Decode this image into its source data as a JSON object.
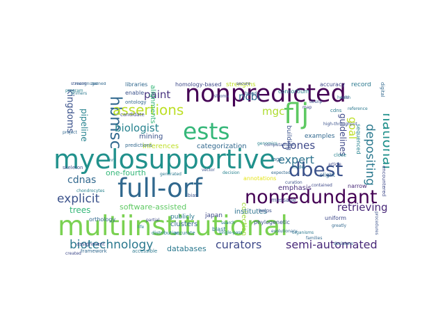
{
  "words": [
    {
      "text": "multiinstitutional",
      "color": "#7ad151"
    },
    {
      "text": "myelosupportive",
      "color": "#21918c"
    },
    {
      "text": "nonpredicted",
      "color": "#440154"
    },
    {
      "text": "full-orf",
      "color": "#31688e"
    },
    {
      "text": "flj",
      "color": "#5ec962"
    },
    {
      "text": "ests",
      "color": "#35b779"
    },
    {
      "text": "nonredundant",
      "color": "#440154"
    },
    {
      "text": "dbest",
      "color": "#3b528b"
    },
    {
      "text": "hbmsc",
      "color": "#31688e"
    },
    {
      "text": "assertions",
      "color": "#bddf26"
    },
    {
      "text": "national",
      "color": "#21918c"
    },
    {
      "text": "biotechnology",
      "color": "#2a788e"
    },
    {
      "text": "curators",
      "color": "#3e4989"
    },
    {
      "text": "semi-automated",
      "color": "#482878"
    },
    {
      "text": "explicit",
      "color": "#3b528b"
    },
    {
      "text": "expert",
      "color": "#2c728e"
    },
    {
      "text": "biologist",
      "color": "#26828e"
    },
    {
      "text": "paint",
      "color": "#46327e"
    },
    {
      "text": "cdnas",
      "color": "#31688e"
    },
    {
      "text": "depositing",
      "color": "#2a788e"
    },
    {
      "text": "kingdoms",
      "color": "#3b528b"
    },
    {
      "text": "ncbi",
      "color": "#31688e"
    },
    {
      "text": "mgc",
      "color": "#addc30"
    },
    {
      "text": "clones",
      "color": "#3e4989"
    },
    {
      "text": "pipeline",
      "color": "#26828e"
    },
    {
      "text": "goal",
      "color": "#bddf26"
    },
    {
      "text": "trees",
      "color": "#35b779"
    },
    {
      "text": "retrieving",
      "color": "#482878"
    },
    {
      "text": "software-assisted",
      "color": "#5ec962"
    },
    {
      "text": "databases",
      "color": "#2a788e"
    },
    {
      "text": "guidelines",
      "color": "#3e4989"
    },
    {
      "text": "one-fourth",
      "color": "#35b779"
    },
    {
      "text": "collection",
      "color": "#a0da39"
    },
    {
      "text": "categorization",
      "color": "#31688e"
    },
    {
      "text": "inferences",
      "color": "#bddf26"
    },
    {
      "text": "alignments",
      "color": "#35b779"
    },
    {
      "text": "mining",
      "color": "#3b528b"
    },
    {
      "text": "publicly",
      "color": "#2a788e"
    },
    {
      "text": "japan",
      "color": "#3e4989"
    },
    {
      "text": "emphasis",
      "color": "#472d7b"
    },
    {
      "text": "institutes",
      "color": "#2c728e"
    },
    {
      "text": "clusters",
      "color": "#31688e"
    },
    {
      "text": "building",
      "color": "#3b528b"
    },
    {
      "text": "annotations",
      "color": "#e5e419"
    },
    {
      "text": "homology-based",
      "color": "#3e4989"
    },
    {
      "text": "strengths",
      "color": "#bddf26"
    },
    {
      "text": "libraries",
      "color": "#31688e"
    },
    {
      "text": "consortium",
      "color": "#26828e"
    },
    {
      "text": "accuracy",
      "color": "#3e4989"
    },
    {
      "text": "record",
      "color": "#2a788e"
    },
    {
      "text": "examples",
      "color": "#31688e"
    },
    {
      "text": "phylogenetic",
      "color": "#3b528b"
    },
    {
      "text": "sequenced",
      "color": "#26828e"
    },
    {
      "text": "uniform",
      "color": "#3e4989"
    },
    {
      "text": "orthology",
      "color": "#31688e"
    },
    {
      "text": "blast",
      "color": "#2a788e"
    },
    {
      "text": "message",
      "color": "#3e4989"
    },
    {
      "text": "slight",
      "color": "#31688e"
    },
    {
      "text": "narrow",
      "color": "#482878"
    },
    {
      "text": "enable",
      "color": "#3b528b"
    },
    {
      "text": "ontology",
      "color": "#31688e"
    },
    {
      "text": "accurate",
      "color": "#2a788e"
    },
    {
      "text": "distribution",
      "color": "#26828e"
    },
    {
      "text": "candidate",
      "color": "#3e4989"
    },
    {
      "text": "predictions",
      "color": "#31688e"
    },
    {
      "text": "skeleton",
      "color": "#3b528b"
    },
    {
      "text": "assignment",
      "color": "#3e4989"
    },
    {
      "text": "framework",
      "color": "#31688e"
    },
    {
      "text": "accessible",
      "color": "#2a788e"
    },
    {
      "text": "bias",
      "color": "#3b528b"
    },
    {
      "text": "tags",
      "color": "#31688e"
    },
    {
      "text": "close",
      "color": "#26828e"
    },
    {
      "text": "cdns",
      "color": "#2a788e"
    },
    {
      "text": "digital",
      "color": "#31688e"
    },
    {
      "text": "encountered",
      "color": "#3e4989"
    },
    {
      "text": "helps",
      "color": "#3b528b"
    },
    {
      "text": "search",
      "color": "#2a788e"
    },
    {
      "text": "article",
      "color": "#3e4989"
    },
    {
      "text": "project",
      "color": "#31688e"
    },
    {
      "text": "genomics",
      "color": "#26828e"
    },
    {
      "text": "stroma",
      "color": "#3b528b"
    },
    {
      "text": "recognized",
      "color": "#31688e"
    },
    {
      "text": "chondrocytes",
      "color": "#26828e"
    },
    {
      "text": "contained",
      "color": "#3e4989"
    },
    {
      "text": "procedures",
      "color": "#3b528b"
    },
    {
      "text": "families",
      "color": "#31688e"
    },
    {
      "text": "organisms",
      "color": "#2a788e"
    },
    {
      "text": "computational",
      "color": "#3b528b"
    },
    {
      "text": "evolutionary",
      "color": "#31688e"
    },
    {
      "text": "single-pass",
      "color": "#26828e"
    },
    {
      "text": "partial",
      "color": "#3e4989"
    },
    {
      "text": "reference",
      "color": "#2a788e"
    },
    {
      "text": "high-throughput",
      "color": "#3b528b"
    },
    {
      "text": "greatly",
      "color": "#31688e"
    },
    {
      "text": "life",
      "color": "#26828e"
    },
    {
      "text": "created",
      "color": "#3e4989"
    },
    {
      "text": "primers",
      "color": "#2a788e"
    },
    {
      "text": "dbsnp",
      "color": "#3b528b"
    },
    {
      "text": "broad",
      "color": "#31688e"
    },
    {
      "text": "map",
      "color": "#3e4989"
    },
    {
      "text": "health",
      "color": "#2a788e"
    },
    {
      "text": "streaml",
      "color": "#3b528b"
    },
    {
      "text": "gained",
      "color": "#31688e"
    },
    {
      "text": "program",
      "color": "#26828e"
    },
    {
      "text": "rna",
      "color": "#3e4989"
    },
    {
      "text": "model",
      "color": "#2a788e"
    },
    {
      "text": "vector",
      "color": "#3b528b"
    },
    {
      "text": "expected",
      "color": "#31688e"
    },
    {
      "text": "decision",
      "color": "#26828e"
    },
    {
      "text": "secure",
      "color": "#3e4989"
    },
    {
      "text": "generated",
      "color": "#2a788e"
    },
    {
      "text": "curation",
      "color": "#3b528b"
    },
    {
      "text": "decisions",
      "color": "#31688e"
    },
    {
      "text": "mm",
      "color": "#26828e"
    }
  ]
}
